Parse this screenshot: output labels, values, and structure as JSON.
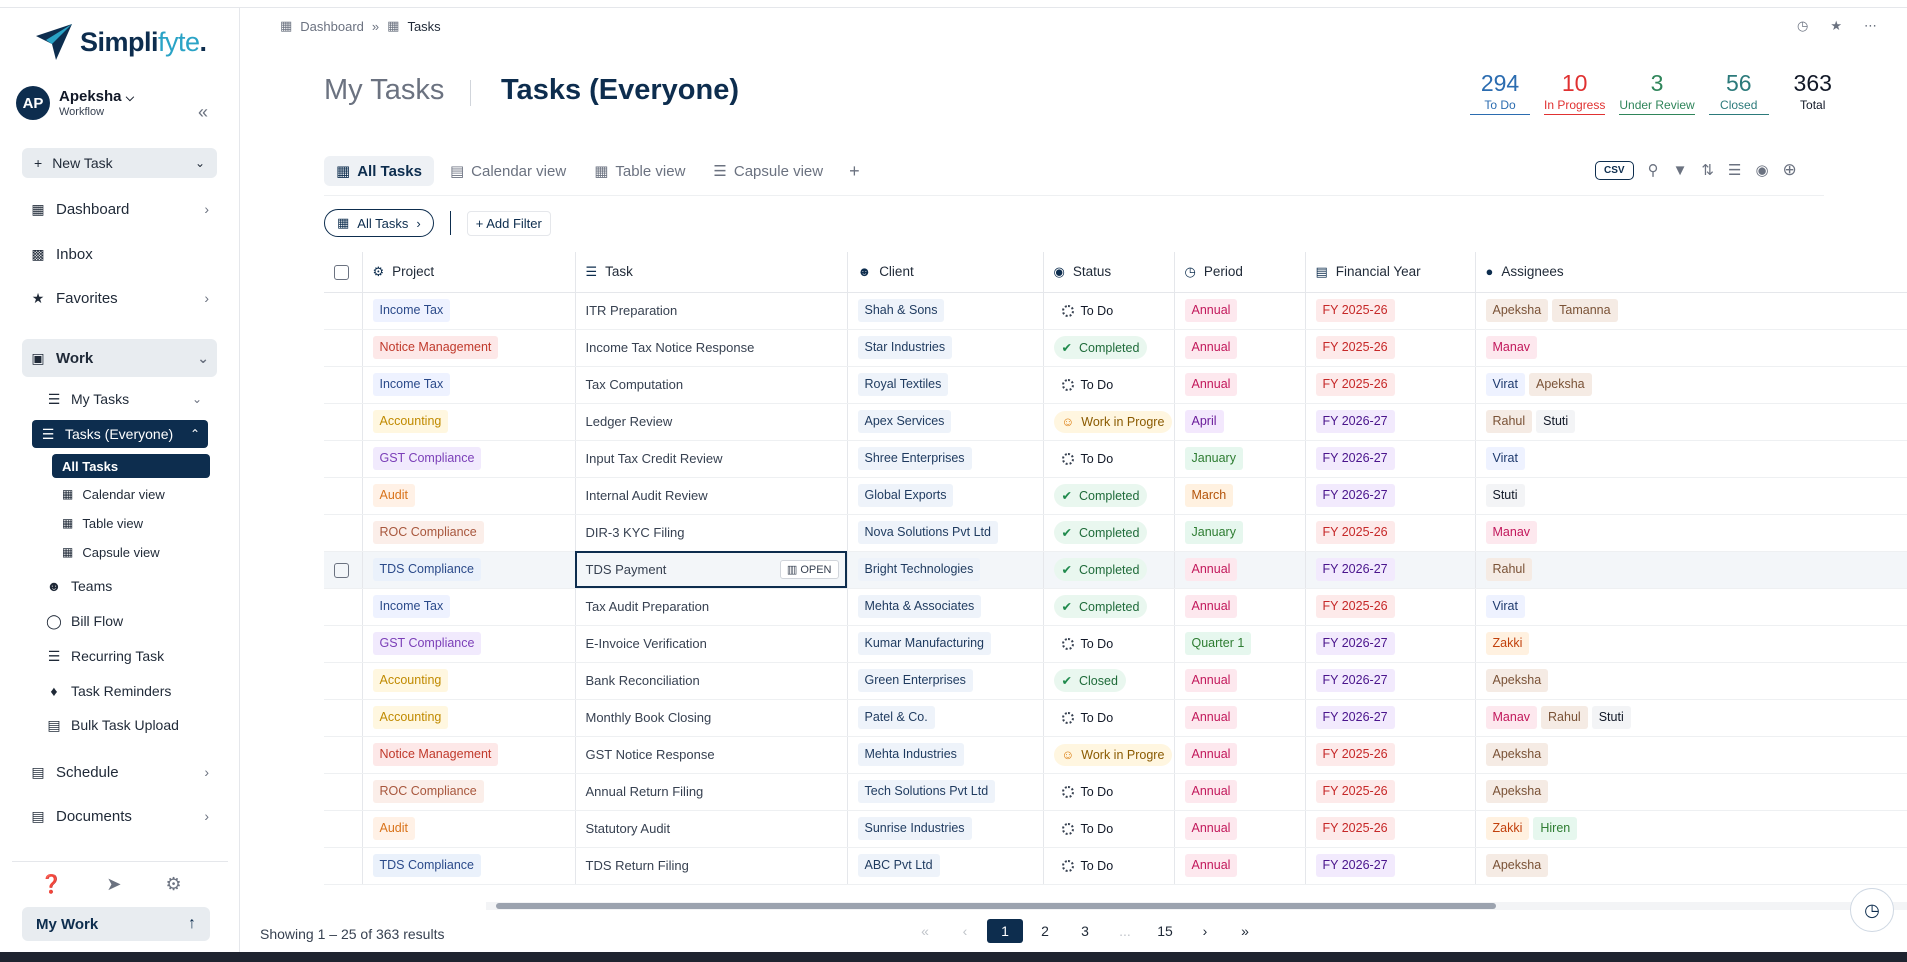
{
  "app": {
    "brand_main": "Simpli",
    "brand_accent": "fyte",
    "brand_dot": ".",
    "accent_color": "#0d2d4e"
  },
  "user": {
    "initials": "AP",
    "name": "Apeksha",
    "workspace": "Workflow"
  },
  "sidebar": {
    "new_task": "New Task",
    "dashboard": "Dashboard",
    "inbox": "Inbox",
    "favorites": "Favorites",
    "work": "Work",
    "my_tasks": "My Tasks",
    "tasks_everyone": "Tasks (Everyone)",
    "all_tasks": "All Tasks",
    "calendar_view": "Calendar view",
    "table_view": "Table view",
    "capsule_view": "Capsule view",
    "teams": "Teams",
    "bill_flow": "Bill Flow",
    "recurring_task": "Recurring Task",
    "task_reminders": "Task Reminders",
    "bulk_task_upload": "Bulk Task Upload",
    "schedule": "Schedule",
    "documents": "Documents",
    "my_work": "My Work"
  },
  "breadcrumb": {
    "root": "Dashboard",
    "current": "Tasks"
  },
  "header": {
    "my_tasks": "My Tasks",
    "tasks_everyone": "Tasks (Everyone)"
  },
  "stats": [
    {
      "value": "294",
      "label": "To Do",
      "color": "#2b6cb0"
    },
    {
      "value": "10",
      "label": "In Progress",
      "color": "#e03131"
    },
    {
      "value": "3",
      "label": "Under Review",
      "color": "#2f855a"
    },
    {
      "value": "56",
      "label": "Closed",
      "color": "#2c7a7b"
    },
    {
      "value": "363",
      "label": "Total",
      "color": "#111827"
    }
  ],
  "tabs": [
    "All Tasks",
    "Calendar view",
    "Table view",
    "Capsule view"
  ],
  "toolbar": {
    "csv": "CSV"
  },
  "filters": {
    "pill": "All Tasks",
    "add_filter": "Add Filter"
  },
  "columns": [
    "Project",
    "Task",
    "Client",
    "Status",
    "Period",
    "Financial Year",
    "Assignees"
  ],
  "rows": [
    {
      "project": "Income Tax",
      "task": "ITR Preparation",
      "client": "Shah & Sons",
      "status": "To Do",
      "period": "Annual",
      "fy": "FY 2025-26",
      "assignees": [
        "Apeksha",
        "Tamanna"
      ]
    },
    {
      "project": "Notice Management",
      "task": "Income Tax Notice Response",
      "client": "Star Industries",
      "status": "Completed",
      "period": "Annual",
      "fy": "FY 2025-26",
      "assignees": [
        "Manav"
      ]
    },
    {
      "project": "Income Tax",
      "task": "Tax Computation",
      "client": "Royal Textiles",
      "status": "To Do",
      "period": "Annual",
      "fy": "FY 2025-26",
      "assignees": [
        "Virat",
        "Apeksha"
      ]
    },
    {
      "project": "Accounting",
      "task": "Ledger Review",
      "client": "Apex Services",
      "status": "Work in Progre",
      "period": "April",
      "fy": "FY 2026-27",
      "assignees": [
        "Rahul",
        "Stuti"
      ]
    },
    {
      "project": "GST Compliance",
      "task": "Input Tax Credit Review",
      "client": "Shree Enterprises",
      "status": "To Do",
      "period": "January",
      "fy": "FY 2026-27",
      "assignees": [
        "Virat"
      ]
    },
    {
      "project": "Audit",
      "task": "Internal Audit Review",
      "client": "Global Exports",
      "status": "Completed",
      "period": "March",
      "fy": "FY 2026-27",
      "assignees": [
        "Stuti"
      ]
    },
    {
      "project": "ROC Compliance",
      "task": "DIR-3 KYC Filing",
      "client": "Nova Solutions Pvt Ltd",
      "status": "Completed",
      "period": "January",
      "fy": "FY 2025-26",
      "assignees": [
        "Manav"
      ]
    },
    {
      "project": "TDS Compliance",
      "task": "TDS Payment",
      "client": "Bright Technologies",
      "status": "Completed",
      "period": "Annual",
      "fy": "FY 2026-27",
      "assignees": [
        "Rahul"
      ],
      "open_label": "OPEN"
    },
    {
      "project": "Income Tax",
      "task": "Tax Audit Preparation",
      "client": "Mehta & Associates",
      "status": "Completed",
      "period": "Annual",
      "fy": "FY 2025-26",
      "assignees": [
        "Virat"
      ]
    },
    {
      "project": "GST Compliance",
      "task": "E-Invoice Verification",
      "client": "Kumar Manufacturing",
      "status": "To Do",
      "period": "Quarter 1",
      "fy": "FY 2026-27",
      "assignees": [
        "Zakki"
      ]
    },
    {
      "project": "Accounting",
      "task": "Bank Reconciliation",
      "client": "Green Enterprises",
      "status": "Closed",
      "period": "Annual",
      "fy": "FY 2026-27",
      "assignees": [
        "Apeksha"
      ]
    },
    {
      "project": "Accounting",
      "task": "Monthly Book Closing",
      "client": "Patel & Co.",
      "status": "To Do",
      "period": "Annual",
      "fy": "FY 2026-27",
      "assignees": [
        "Manav",
        "Rahul",
        "Stuti"
      ]
    },
    {
      "project": "Notice Management",
      "task": "GST Notice Response",
      "client": "Mehta Industries",
      "status": "Work in Progre",
      "period": "Annual",
      "fy": "FY 2025-26",
      "assignees": [
        "Apeksha"
      ]
    },
    {
      "project": "ROC Compliance",
      "task": "Annual Return Filing",
      "client": "Tech Solutions Pvt Ltd",
      "status": "To Do",
      "period": "Annual",
      "fy": "FY 2025-26",
      "assignees": [
        "Apeksha"
      ]
    },
    {
      "project": "Audit",
      "task": "Statutory Audit",
      "client": "Sunrise Industries",
      "status": "To Do",
      "period": "Annual",
      "fy": "FY 2025-26",
      "assignees": [
        "Zakki",
        "Hiren"
      ]
    },
    {
      "project": "TDS Compliance",
      "task": "TDS Return Filing",
      "client": "ABC Pvt Ltd",
      "status": "To Do",
      "period": "Annual",
      "fy": "FY 2026-27",
      "assignees": [
        "Apeksha"
      ]
    }
  ],
  "pagination": {
    "showing": "Showing 1 – 25 of 363 results",
    "pages": [
      "1",
      "2",
      "3",
      "...",
      "15"
    ],
    "current": "1"
  }
}
